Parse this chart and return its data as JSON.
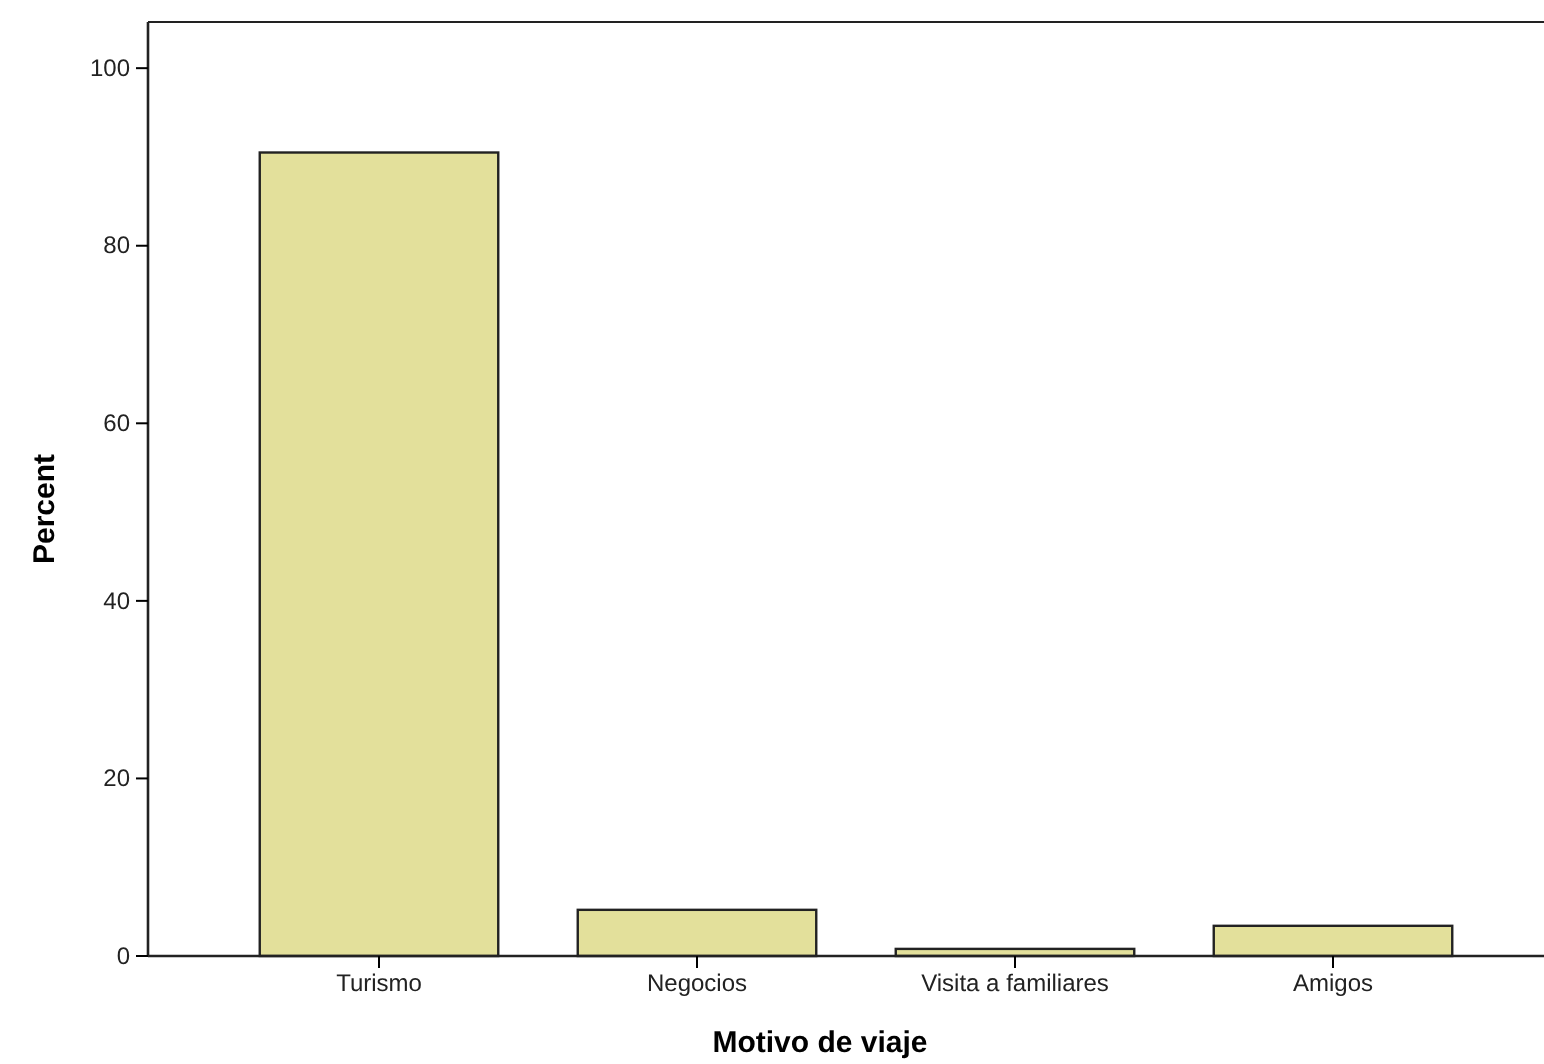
{
  "chart_data": {
    "type": "bar",
    "xlabel": "Motivo de viaje",
    "ylabel": "Percent",
    "categories": [
      "Turismo",
      "Negocios",
      "Visita a familiares",
      "Amigos"
    ],
    "values": [
      90.5,
      5.2,
      0.8,
      3.4
    ],
    "color": "#e3e09b",
    "ylim": [
      0,
      105.2
    ],
    "yticks": [
      0,
      20,
      40,
      60,
      80,
      100
    ],
    "grid": false
  }
}
